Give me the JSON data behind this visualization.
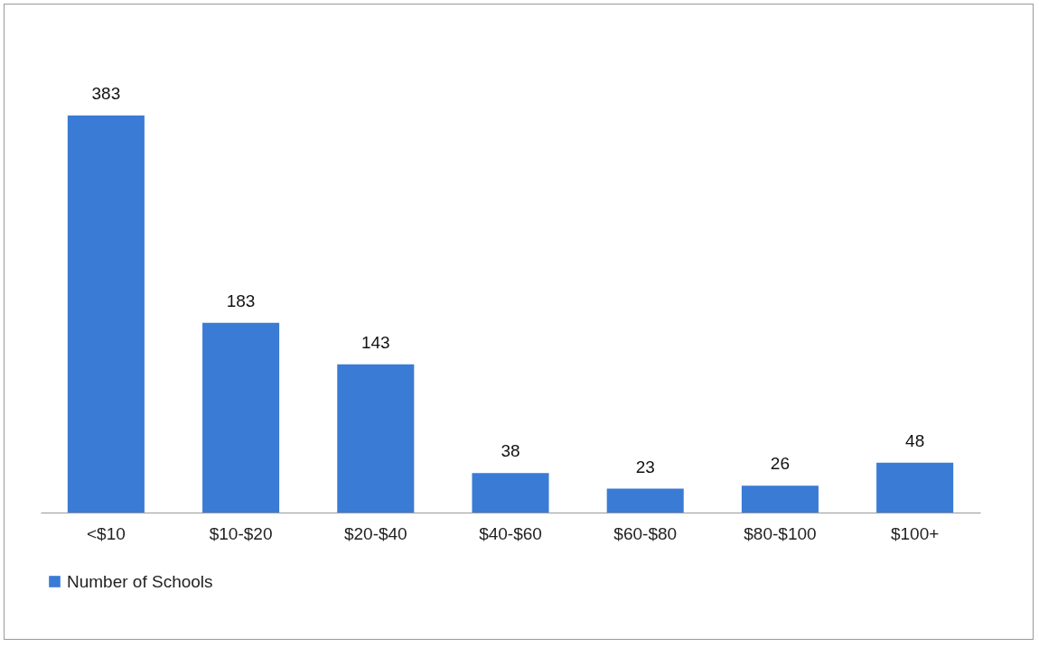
{
  "chart_data": {
    "type": "bar",
    "categories": [
      "<$10",
      "$10-$20",
      "$20-$40",
      "$40-$60",
      "$60-$80",
      "$80-$100",
      "$100+"
    ],
    "series": [
      {
        "name": "Number of Schools",
        "color": "#3a7bd5",
        "values": [
          383,
          183,
          143,
          38,
          23,
          26,
          48
        ]
      }
    ],
    "data_labels": true,
    "legend": "bottom"
  }
}
